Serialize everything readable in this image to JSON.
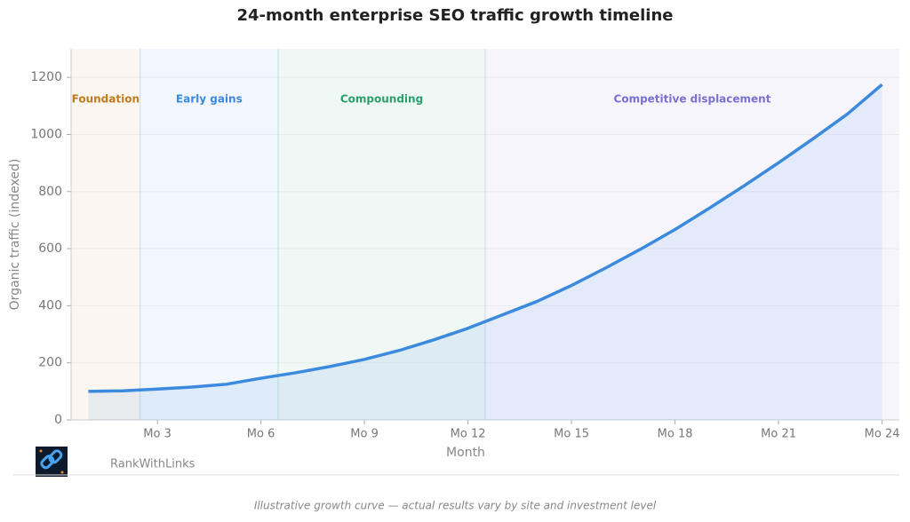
{
  "chart_data": {
    "type": "area-line",
    "title": "24-month enterprise SEO traffic growth timeline",
    "x_label": "Month",
    "y_label": "Organic traffic (indexed)",
    "x": [
      1,
      2,
      3,
      4,
      5,
      6,
      7,
      8,
      9,
      10,
      11,
      12,
      13,
      14,
      15,
      16,
      17,
      18,
      19,
      20,
      21,
      22,
      23,
      24
    ],
    "values": [
      100,
      102,
      108,
      115,
      125,
      146,
      165,
      187,
      212,
      243,
      280,
      321,
      368,
      415,
      471,
      533,
      598,
      667,
      742,
      820,
      901,
      985,
      1072,
      1175
    ],
    "color": "#3b8ade",
    "xlim": [
      0.5,
      24.5
    ],
    "ylim": [
      0,
      1300
    ],
    "xticks": [
      {
        "value": 3,
        "label": "Mo 3"
      },
      {
        "value": 6,
        "label": "Mo 6"
      },
      {
        "value": 9,
        "label": "Mo 9"
      },
      {
        "value": 12,
        "label": "Mo 12"
      },
      {
        "value": 15,
        "label": "Mo 15"
      },
      {
        "value": 18,
        "label": "Mo 18"
      },
      {
        "value": 21,
        "label": "Mo 21"
      },
      {
        "value": 24,
        "label": "Mo 24"
      }
    ],
    "yticks": [
      0,
      200,
      400,
      600,
      800,
      1000,
      1200
    ],
    "grid": true,
    "phases": [
      {
        "label": "Foundation",
        "start": 0.5,
        "end": 2.5,
        "color": "#c27a1c"
      },
      {
        "label": "Early gains",
        "start": 2.5,
        "end": 6.5,
        "color": "#3b8ade"
      },
      {
        "label": "Compounding",
        "start": 6.5,
        "end": 12.5,
        "color": "#2a9d6f"
      },
      {
        "label": "Competitive displacement",
        "start": 12.5,
        "end": 24.5,
        "color": "#7b6fd6"
      }
    ]
  },
  "footer": {
    "brand": "RankWithLinks",
    "caption": "Illustrative growth curve — actual results vary by site and investment level"
  }
}
